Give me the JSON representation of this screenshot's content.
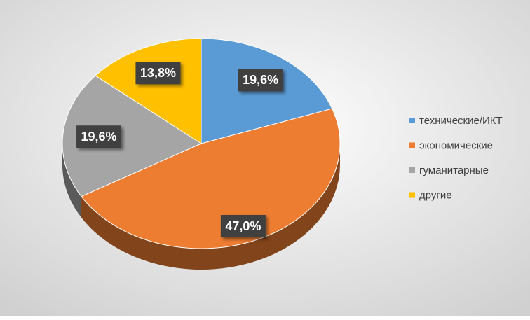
{
  "chart_data": {
    "type": "pie",
    "categories": [
      "технические/ИКТ",
      "экономические",
      "гуманитарные",
      "другие"
    ],
    "values": [
      19.6,
      47.0,
      19.6,
      13.8
    ],
    "value_labels": [
      "19,6%",
      "47,0%",
      "19,6%",
      "13,8%"
    ],
    "colors": [
      "#5b9bd5",
      "#ed7d31",
      "#a5a5a5",
      "#ffc000"
    ],
    "legend": "right"
  }
}
